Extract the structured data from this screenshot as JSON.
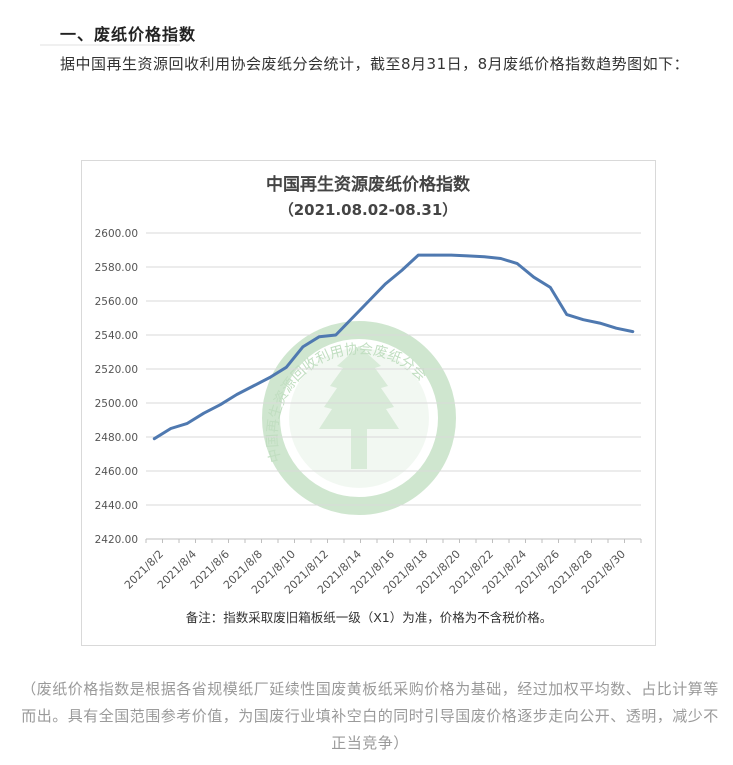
{
  "article": {
    "heading": "一、废纸价格指数",
    "intro": "据中国再生资源回收利用协会废纸分会统计，截至8月31日，8月废纸价格指数趋势图如下：",
    "caption": "（废纸价格指数是根据各省规模纸厂延续性国废黄板纸采购价格为基础，经过加权平均数、占比计算等而出。具有全国范围参考价值，为国废行业填补空白的同时引导国废价格逐步走向公开、透明，减少不正当竞争）"
  },
  "watermark": {
    "text": "中国再生资源回收利用协会废纸分会",
    "color": "#8fc48f"
  },
  "chart_data": {
    "type": "line",
    "title": "中国再生资源废纸价格指数",
    "subtitle": "（2021.08.02-08.31）",
    "note": "备注：指数采取废旧箱板纸一级（X1）为准，价格为不含税价格。",
    "ylim": [
      2420,
      2600
    ],
    "yticks": [
      "2600.00",
      "2580.00",
      "2560.00",
      "2540.00",
      "2520.00",
      "2500.00",
      "2480.00",
      "2460.00",
      "2440.00",
      "2420.00"
    ],
    "xtick_labels": [
      "2021/8/2",
      "2021/8/4",
      "2021/8/6",
      "2021/8/8",
      "2021/8/10",
      "2021/8/12",
      "2021/8/14",
      "2021/8/16",
      "2021/8/18",
      "2021/8/20",
      "2021/8/22",
      "2021/8/24",
      "2021/8/26",
      "2021/8/28",
      "2021/8/30"
    ],
    "grid": true,
    "line_color": "#4f79b0",
    "series": [
      {
        "x": [
          "2021/8/2",
          "2021/8/3",
          "2021/8/4",
          "2021/8/5",
          "2021/8/6",
          "2021/8/7",
          "2021/8/8",
          "2021/8/9",
          "2021/8/10",
          "2021/8/11",
          "2021/8/12",
          "2021/8/13",
          "2021/8/14",
          "2021/8/15",
          "2021/8/16",
          "2021/8/17",
          "2021/8/18",
          "2021/8/19",
          "2021/8/20",
          "2021/8/21",
          "2021/8/22",
          "2021/8/23",
          "2021/8/24",
          "2021/8/25",
          "2021/8/26",
          "2021/8/27",
          "2021/8/28",
          "2021/8/29",
          "2021/8/30",
          "2021/8/31"
        ],
        "values": [
          2479,
          2485,
          2488,
          2494,
          2499,
          2505,
          2510,
          2515,
          2521,
          2533,
          2539,
          2540,
          2550,
          2560,
          2570,
          2578,
          2587,
          2587,
          2587,
          2586.5,
          2586,
          2585,
          2582,
          2574,
          2568,
          2552,
          2549,
          2547,
          2544,
          2542
        ]
      }
    ]
  }
}
